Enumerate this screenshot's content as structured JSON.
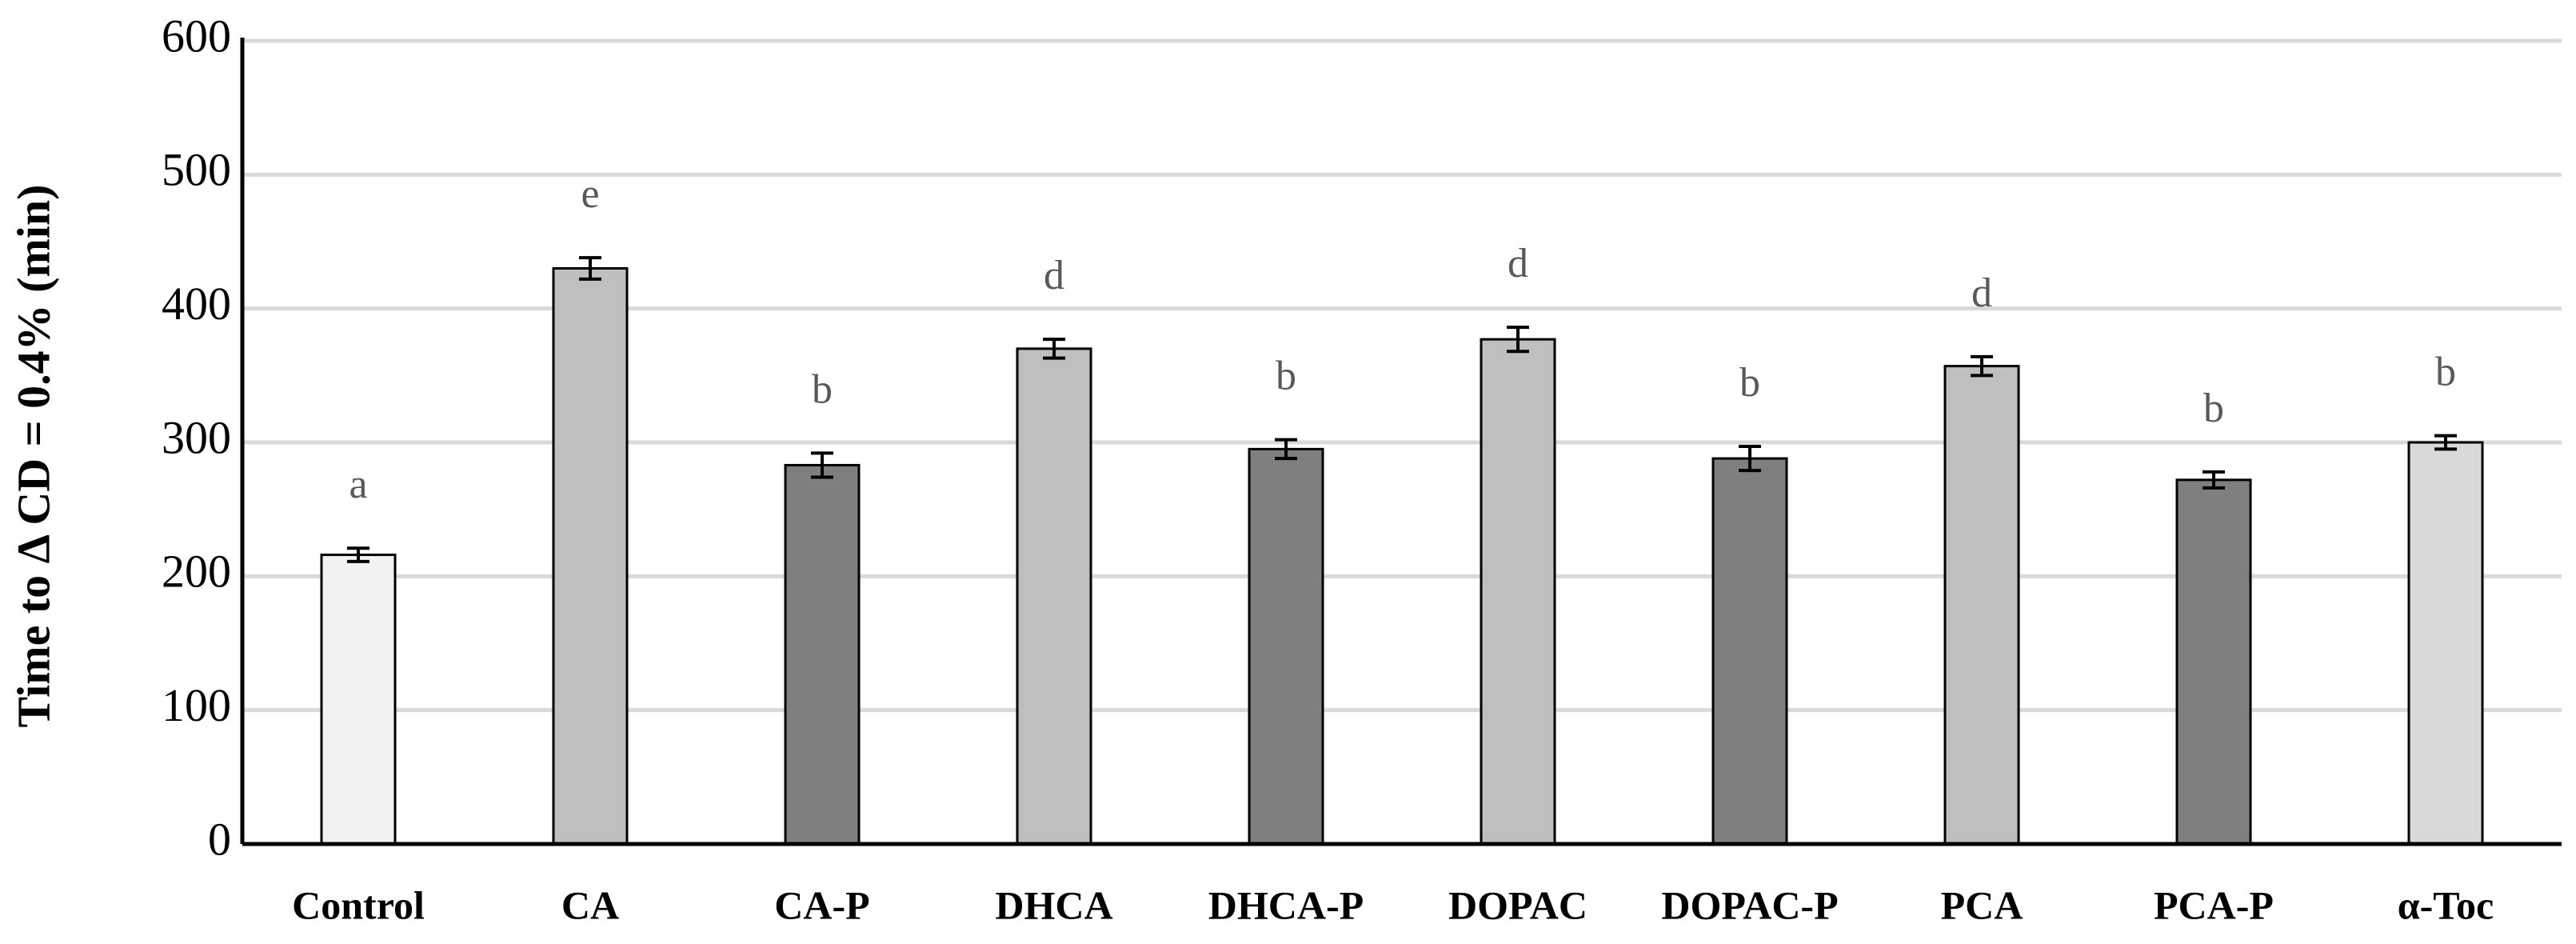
{
  "chart_data": {
    "type": "bar",
    "ylabel": "Time to Δ CD = 0.4% (min)",
    "categories": [
      "Control",
      "CA",
      "CA-P",
      "DHCA",
      "DHCA-P",
      "DOPAC",
      "DOPAC-P",
      "PCA",
      "PCA-P",
      "α-Toc"
    ],
    "values": [
      216,
      430,
      283,
      370,
      295,
      377,
      288,
      357,
      272,
      300
    ],
    "errors": [
      5,
      8,
      9,
      7,
      7,
      9,
      9,
      7,
      6,
      5
    ],
    "annotations": [
      "a",
      "e",
      "b",
      "d",
      "b",
      "d",
      "b",
      "d",
      "b",
      "b"
    ],
    "colors": [
      "#f2f2f2",
      "#bfbfbf",
      "#7f7f7f",
      "#bfbfbf",
      "#7f7f7f",
      "#bfbfbf",
      "#7f7f7f",
      "#bfbfbf",
      "#7f7f7f",
      "#d9d9d9"
    ],
    "ylim": [
      0,
      600
    ],
    "yticks": [
      0,
      100,
      200,
      300,
      400,
      500,
      600
    ],
    "grid": true
  }
}
